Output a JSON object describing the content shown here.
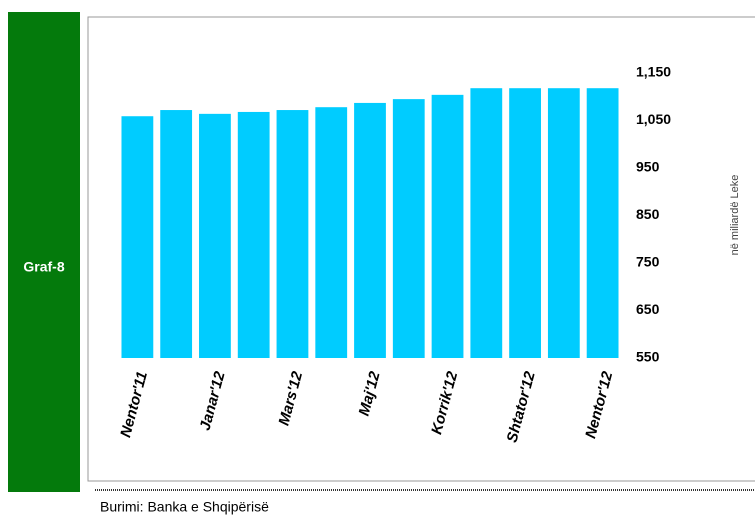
{
  "chart_data": {
    "type": "bar",
    "label": "Graf-8",
    "y_axis_label": "në miliardë Leke",
    "source": "Burimi: Banka e Shqipërisë",
    "categories": [
      "Nentor'11",
      null,
      "Janar'12",
      null,
      "Mars'12",
      null,
      "Maj'12",
      null,
      "Korrik'12",
      null,
      "Shtator'12",
      null,
      "Nentor'12"
    ],
    "values": [
      1059,
      1072,
      1064,
      1068,
      1072,
      1078,
      1087,
      1095,
      1104,
      1118,
      1118,
      1118,
      1118
    ],
    "color": "#00ccff",
    "ylim": [
      550,
      1150
    ],
    "yticks": [
      550,
      650,
      750,
      850,
      950,
      {
        "value": 1050,
        "label": "1,050"
      },
      {
        "value": 1150,
        "label": "1,150"
      }
    ],
    "grid": false
  }
}
